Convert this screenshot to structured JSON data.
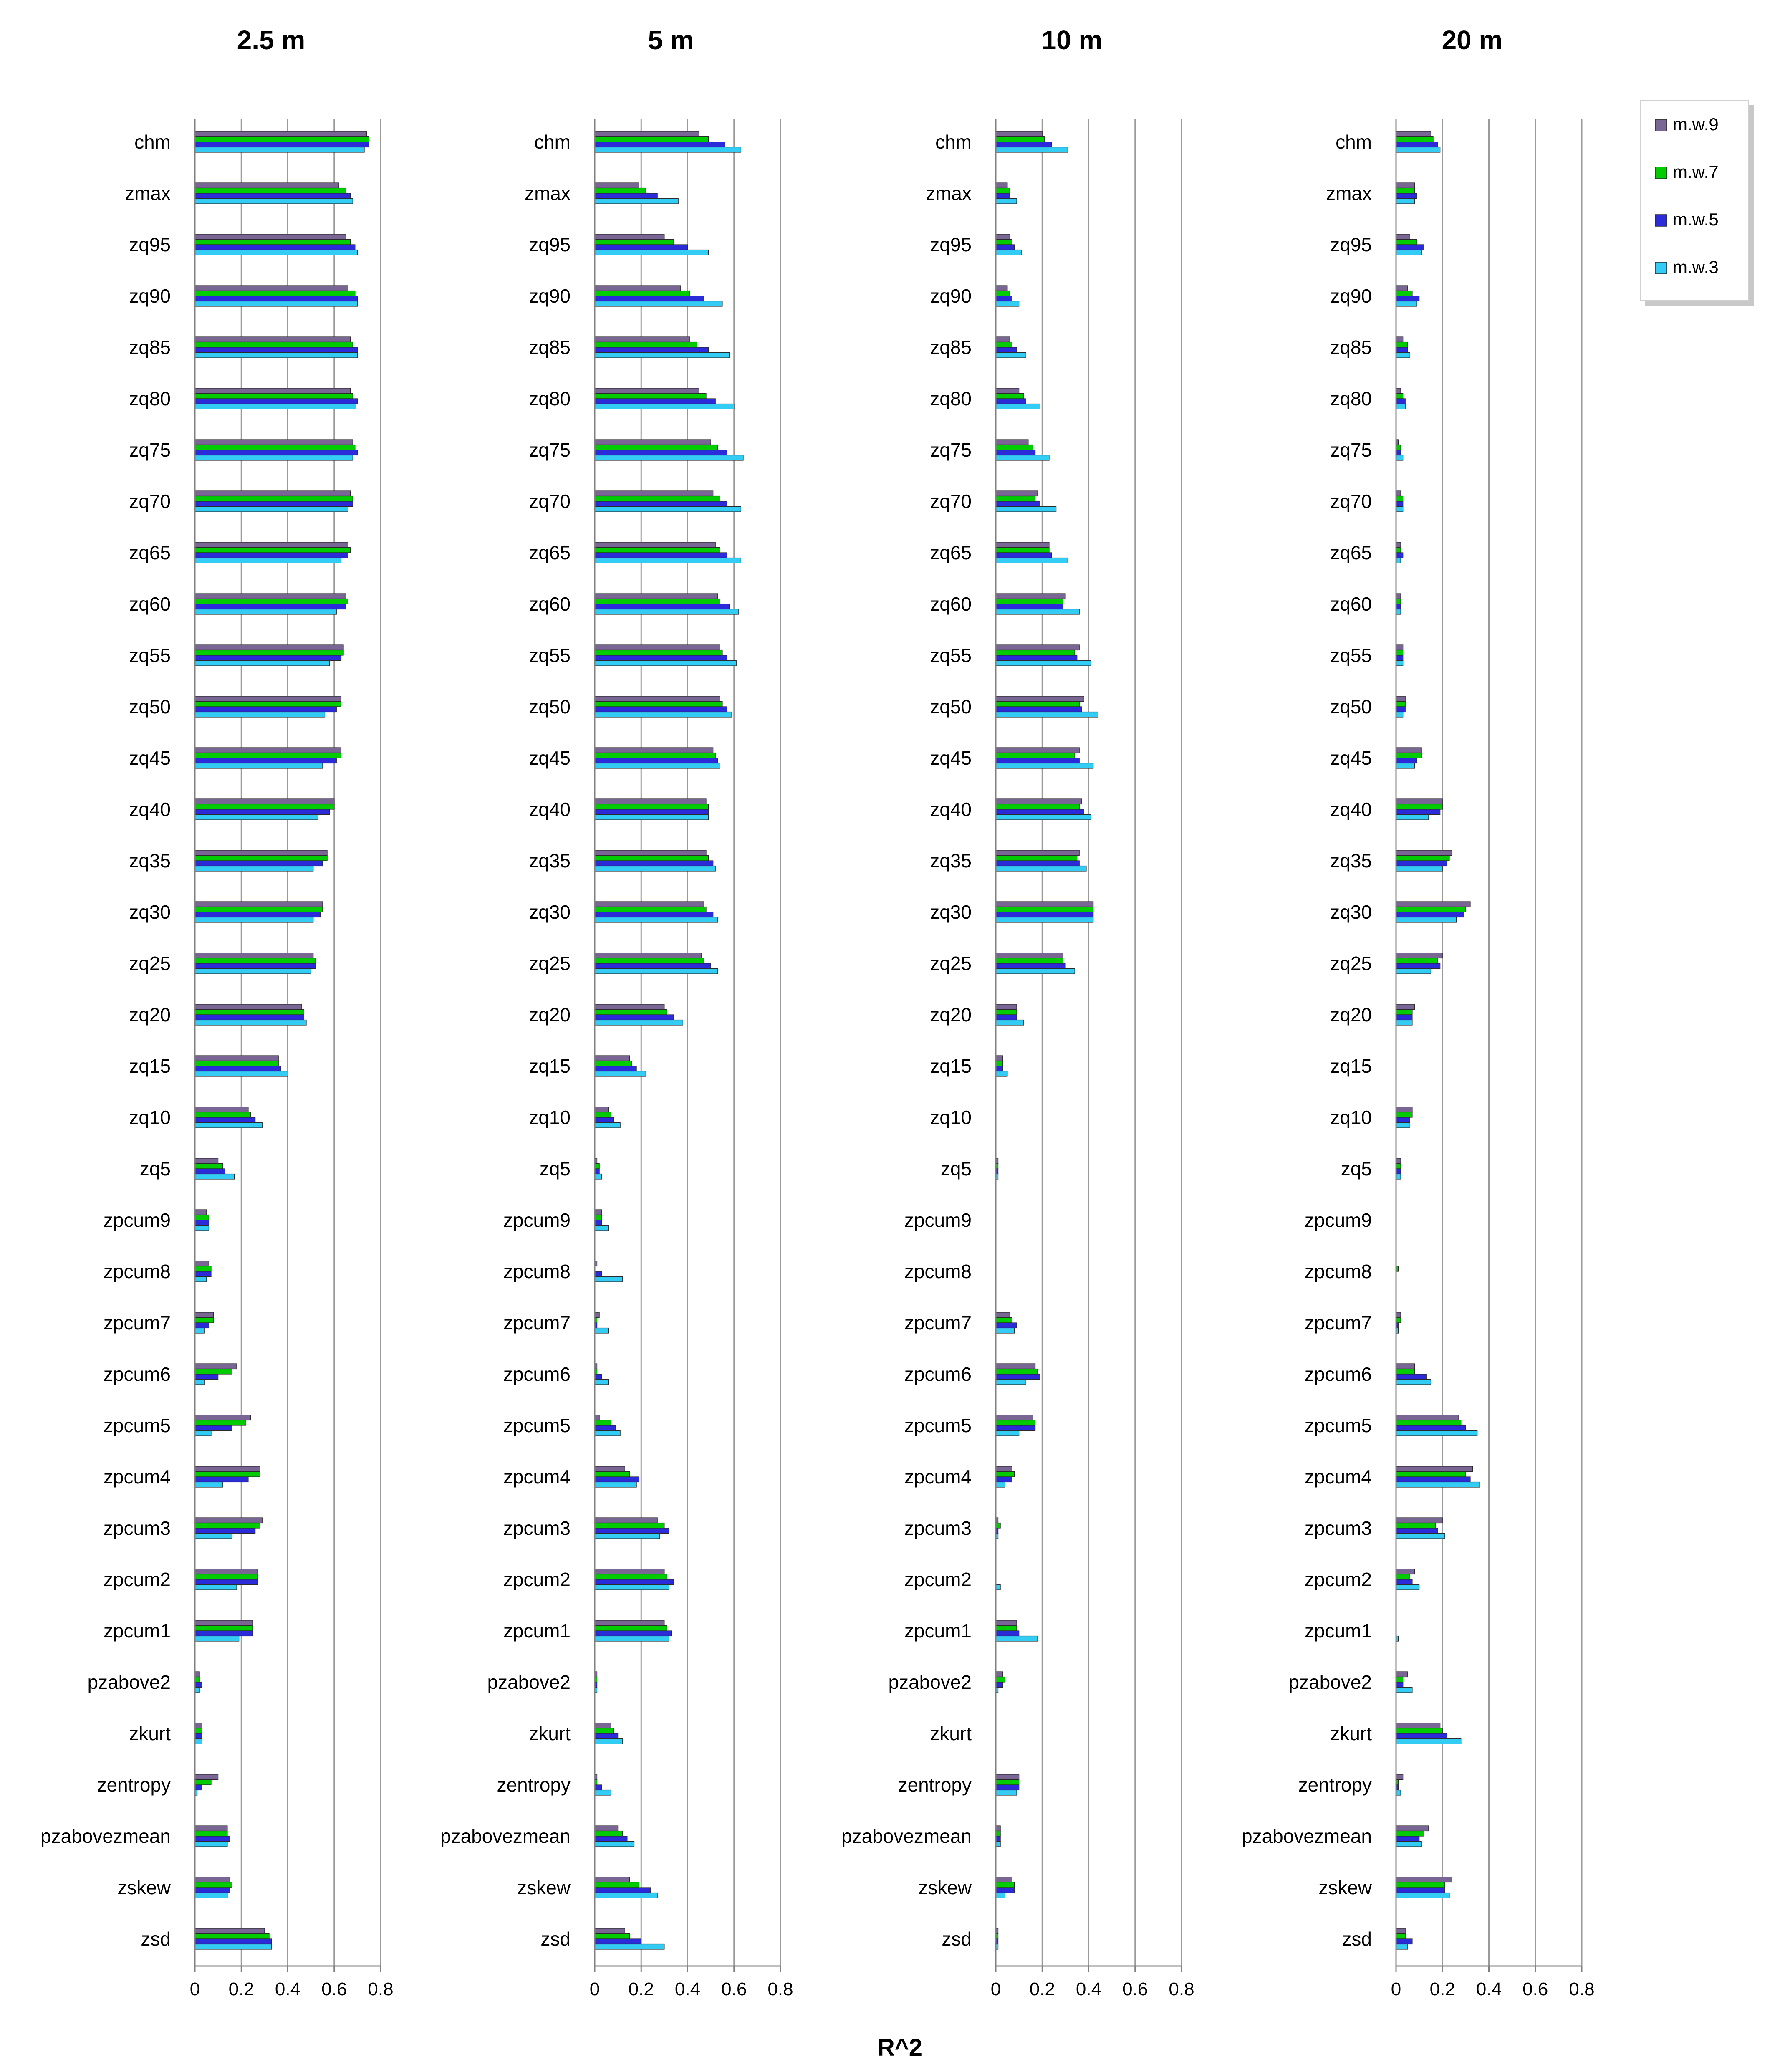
{
  "colors": {
    "m.w.9": "#7a6694",
    "m.w.7": "#00cc00",
    "m.w.5": "#2b2bd9",
    "m.w.3": "#33ccf5",
    "gridline": "#9a9a9a",
    "axis": "#808080",
    "text": "#000000",
    "bar_border": "#2a2a2a"
  },
  "shared_xlabel": "R^2",
  "chart_data": [
    {
      "type": "bar",
      "orientation": "horizontal",
      "title": "2.5 m",
      "xlabel": "R^2",
      "xlim": [
        0,
        0.8
      ],
      "xticks": [
        0,
        0.2,
        0.4,
        0.6,
        0.8
      ],
      "xtick_labels": [
        "0",
        "0.2",
        "0.4",
        "0.6",
        "0.8"
      ],
      "grid": true,
      "categories": [
        "chm",
        "zmax",
        "zq95",
        "zq90",
        "zq85",
        "zq80",
        "zq75",
        "zq70",
        "zq65",
        "zq60",
        "zq55",
        "zq50",
        "zq45",
        "zq40",
        "zq35",
        "zq30",
        "zq25",
        "zq20",
        "zq15",
        "zq10",
        "zq5",
        "zpcum9",
        "zpcum8",
        "zpcum7",
        "zpcum6",
        "zpcum5",
        "zpcum4",
        "zpcum3",
        "zpcum2",
        "zpcum1",
        "pzabove2",
        "zkurt",
        "zentropy",
        "pzabovezmean",
        "zskew",
        "zsd"
      ],
      "series": [
        {
          "name": "m.w.9",
          "values": [
            0.74,
            0.62,
            0.65,
            0.66,
            0.67,
            0.67,
            0.68,
            0.67,
            0.66,
            0.65,
            0.64,
            0.63,
            0.63,
            0.6,
            0.57,
            0.55,
            0.51,
            0.46,
            0.36,
            0.23,
            0.1,
            0.05,
            0.06,
            0.08,
            0.18,
            0.24,
            0.28,
            0.29,
            0.27,
            0.25,
            0.02,
            0.03,
            0.1,
            0.14,
            0.15,
            0.3
          ]
        },
        {
          "name": "m.w.7",
          "values": [
            0.75,
            0.65,
            0.67,
            0.69,
            0.68,
            0.68,
            0.69,
            0.68,
            0.67,
            0.66,
            0.64,
            0.63,
            0.63,
            0.6,
            0.57,
            0.55,
            0.52,
            0.47,
            0.36,
            0.24,
            0.12,
            0.06,
            0.07,
            0.08,
            0.16,
            0.22,
            0.28,
            0.28,
            0.27,
            0.25,
            0.02,
            0.03,
            0.07,
            0.14,
            0.16,
            0.32
          ]
        },
        {
          "name": "m.w.5",
          "values": [
            0.75,
            0.67,
            0.69,
            0.7,
            0.7,
            0.7,
            0.7,
            0.68,
            0.66,
            0.65,
            0.63,
            0.61,
            0.61,
            0.58,
            0.55,
            0.54,
            0.52,
            0.47,
            0.37,
            0.26,
            0.13,
            0.06,
            0.07,
            0.06,
            0.1,
            0.16,
            0.23,
            0.26,
            0.27,
            0.25,
            0.03,
            0.03,
            0.03,
            0.15,
            0.15,
            0.33
          ]
        },
        {
          "name": "m.w.3",
          "values": [
            0.73,
            0.68,
            0.7,
            0.7,
            0.7,
            0.69,
            0.68,
            0.66,
            0.63,
            0.61,
            0.58,
            0.56,
            0.55,
            0.53,
            0.51,
            0.51,
            0.5,
            0.48,
            0.4,
            0.29,
            0.17,
            0.06,
            0.05,
            0.04,
            0.04,
            0.07,
            0.12,
            0.16,
            0.18,
            0.19,
            0.02,
            0.03,
            0.01,
            0.14,
            0.14,
            0.33
          ]
        }
      ]
    },
    {
      "type": "bar",
      "orientation": "horizontal",
      "title": "5 m",
      "xlabel": "R^2",
      "xlim": [
        0,
        0.8
      ],
      "xticks": [
        0,
        0.2,
        0.4,
        0.6,
        0.8
      ],
      "xtick_labels": [
        "0",
        "0.2",
        "0.4",
        "0.6",
        "0.8"
      ],
      "grid": true,
      "categories": [
        "chm",
        "zmax",
        "zq95",
        "zq90",
        "zq85",
        "zq80",
        "zq75",
        "zq70",
        "zq65",
        "zq60",
        "zq55",
        "zq50",
        "zq45",
        "zq40",
        "zq35",
        "zq30",
        "zq25",
        "zq20",
        "zq15",
        "zq10",
        "zq5",
        "zpcum9",
        "zpcum8",
        "zpcum7",
        "zpcum6",
        "zpcum5",
        "zpcum4",
        "zpcum3",
        "zpcum2",
        "zpcum1",
        "pzabove2",
        "zkurt",
        "zentropy",
        "pzabovezmean",
        "zskew",
        "zsd"
      ],
      "series": [
        {
          "name": "m.w.9",
          "values": [
            0.45,
            0.19,
            0.3,
            0.37,
            0.41,
            0.45,
            0.5,
            0.51,
            0.52,
            0.53,
            0.54,
            0.54,
            0.51,
            0.48,
            0.48,
            0.47,
            0.46,
            0.3,
            0.15,
            0.06,
            0.01,
            0.03,
            0.01,
            0.02,
            0.01,
            0.02,
            0.13,
            0.27,
            0.3,
            0.3,
            0.01,
            0.07,
            0.01,
            0.1,
            0.15,
            0.13
          ]
        },
        {
          "name": "m.w.7",
          "values": [
            0.49,
            0.22,
            0.34,
            0.41,
            0.44,
            0.48,
            0.53,
            0.54,
            0.54,
            0.54,
            0.55,
            0.55,
            0.52,
            0.49,
            0.49,
            0.48,
            0.47,
            0.31,
            0.16,
            0.07,
            0.02,
            0.03,
            0.0,
            0.01,
            0.01,
            0.07,
            0.15,
            0.3,
            0.31,
            0.31,
            0.01,
            0.08,
            0.01,
            0.12,
            0.19,
            0.15
          ]
        },
        {
          "name": "m.w.5",
          "values": [
            0.56,
            0.27,
            0.4,
            0.47,
            0.49,
            0.52,
            0.57,
            0.57,
            0.57,
            0.58,
            0.57,
            0.57,
            0.53,
            0.49,
            0.51,
            0.51,
            0.5,
            0.34,
            0.18,
            0.08,
            0.02,
            0.03,
            0.03,
            0.01,
            0.03,
            0.09,
            0.19,
            0.32,
            0.34,
            0.33,
            0.01,
            0.1,
            0.03,
            0.14,
            0.24,
            0.2
          ]
        },
        {
          "name": "m.w.3",
          "values": [
            0.63,
            0.36,
            0.49,
            0.55,
            0.58,
            0.6,
            0.64,
            0.63,
            0.63,
            0.62,
            0.61,
            0.59,
            0.54,
            0.49,
            0.52,
            0.53,
            0.53,
            0.38,
            0.22,
            0.11,
            0.03,
            0.06,
            0.12,
            0.06,
            0.06,
            0.11,
            0.18,
            0.28,
            0.32,
            0.32,
            0.01,
            0.12,
            0.07,
            0.17,
            0.27,
            0.3
          ]
        }
      ]
    },
    {
      "type": "bar",
      "orientation": "horizontal",
      "title": "10 m",
      "xlabel": "R^2",
      "xlim": [
        0,
        0.8
      ],
      "xticks": [
        0,
        0.2,
        0.4,
        0.6,
        0.8
      ],
      "xtick_labels": [
        "0",
        "0.2",
        "0.4",
        "0.6",
        "0.8"
      ],
      "grid": true,
      "categories": [
        "chm",
        "zmax",
        "zq95",
        "zq90",
        "zq85",
        "zq80",
        "zq75",
        "zq70",
        "zq65",
        "zq60",
        "zq55",
        "zq50",
        "zq45",
        "zq40",
        "zq35",
        "zq30",
        "zq25",
        "zq20",
        "zq15",
        "zq10",
        "zq5",
        "zpcum9",
        "zpcum8",
        "zpcum7",
        "zpcum6",
        "zpcum5",
        "zpcum4",
        "zpcum3",
        "zpcum2",
        "zpcum1",
        "pzabove2",
        "zkurt",
        "zentropy",
        "pzabovezmean",
        "zskew",
        "zsd"
      ],
      "series": [
        {
          "name": "m.w.9",
          "values": [
            0.2,
            0.05,
            0.06,
            0.05,
            0.06,
            0.1,
            0.14,
            0.18,
            0.23,
            0.3,
            0.36,
            0.38,
            0.36,
            0.37,
            0.36,
            0.42,
            0.29,
            0.09,
            0.03,
            0.0,
            0.01,
            0.0,
            0.0,
            0.06,
            0.17,
            0.16,
            0.07,
            0.01,
            0.0,
            0.09,
            0.03,
            0.0,
            0.1,
            0.02,
            0.07,
            0.01
          ]
        },
        {
          "name": "m.w.7",
          "values": [
            0.21,
            0.06,
            0.07,
            0.06,
            0.07,
            0.12,
            0.16,
            0.17,
            0.23,
            0.29,
            0.34,
            0.36,
            0.34,
            0.36,
            0.35,
            0.42,
            0.29,
            0.09,
            0.03,
            0.0,
            0.01,
            0.0,
            0.0,
            0.07,
            0.18,
            0.17,
            0.08,
            0.02,
            0.0,
            0.09,
            0.04,
            0.0,
            0.1,
            0.02,
            0.08,
            0.01
          ]
        },
        {
          "name": "m.w.5",
          "values": [
            0.24,
            0.06,
            0.08,
            0.07,
            0.09,
            0.13,
            0.17,
            0.19,
            0.24,
            0.29,
            0.35,
            0.37,
            0.36,
            0.38,
            0.36,
            0.42,
            0.3,
            0.09,
            0.03,
            0.0,
            0.01,
            0.0,
            0.0,
            0.09,
            0.19,
            0.17,
            0.07,
            0.01,
            0.0,
            0.1,
            0.03,
            0.0,
            0.1,
            0.02,
            0.08,
            0.01
          ]
        },
        {
          "name": "m.w.3",
          "values": [
            0.31,
            0.09,
            0.11,
            0.1,
            0.13,
            0.19,
            0.23,
            0.26,
            0.31,
            0.36,
            0.41,
            0.44,
            0.42,
            0.41,
            0.39,
            0.42,
            0.34,
            0.12,
            0.05,
            0.0,
            0.01,
            0.0,
            0.0,
            0.08,
            0.13,
            0.1,
            0.04,
            0.01,
            0.02,
            0.18,
            0.01,
            0.0,
            0.09,
            0.02,
            0.04,
            0.01
          ]
        }
      ]
    },
    {
      "type": "bar",
      "orientation": "horizontal",
      "title": "20 m",
      "xlabel": "R^2",
      "xlim": [
        0,
        0.8
      ],
      "xticks": [
        0,
        0.2,
        0.4,
        0.6,
        0.8
      ],
      "xtick_labels": [
        "0",
        "0.2",
        "0.4",
        "0.6",
        "0.8"
      ],
      "grid": true,
      "legend": {
        "position": "top-right",
        "entries": [
          "m.w.9",
          "m.w.7",
          "m.w.5",
          "m.w.3"
        ]
      },
      "categories": [
        "chm",
        "zmax",
        "zq95",
        "zq90",
        "zq85",
        "zq80",
        "zq75",
        "zq70",
        "zq65",
        "zq60",
        "zq55",
        "zq50",
        "zq45",
        "zq40",
        "zq35",
        "zq30",
        "zq25",
        "zq20",
        "zq15",
        "zq10",
        "zq5",
        "zpcum9",
        "zpcum8",
        "zpcum7",
        "zpcum6",
        "zpcum5",
        "zpcum4",
        "zpcum3",
        "zpcum2",
        "zpcum1",
        "pzabove2",
        "zkurt",
        "zentropy",
        "pzabovezmean",
        "zskew",
        "zsd"
      ],
      "series": [
        {
          "name": "m.w.9",
          "values": [
            0.15,
            0.08,
            0.06,
            0.05,
            0.03,
            0.02,
            0.01,
            0.02,
            0.02,
            0.02,
            0.03,
            0.04,
            0.11,
            0.2,
            0.24,
            0.32,
            0.2,
            0.08,
            0.0,
            0.07,
            0.02,
            0.0,
            0.0,
            0.02,
            0.08,
            0.27,
            0.33,
            0.2,
            0.08,
            0.0,
            0.05,
            0.19,
            0.03,
            0.14,
            0.24,
            0.04
          ]
        },
        {
          "name": "m.w.7",
          "values": [
            0.16,
            0.08,
            0.09,
            0.07,
            0.05,
            0.03,
            0.02,
            0.03,
            0.02,
            0.02,
            0.03,
            0.04,
            0.11,
            0.2,
            0.23,
            0.3,
            0.18,
            0.07,
            0.0,
            0.07,
            0.02,
            0.0,
            0.01,
            0.02,
            0.08,
            0.28,
            0.3,
            0.17,
            0.06,
            0.0,
            0.03,
            0.2,
            0.01,
            0.12,
            0.21,
            0.04
          ]
        },
        {
          "name": "m.w.5",
          "values": [
            0.18,
            0.09,
            0.12,
            0.1,
            0.05,
            0.04,
            0.02,
            0.03,
            0.03,
            0.02,
            0.03,
            0.04,
            0.09,
            0.19,
            0.22,
            0.29,
            0.19,
            0.07,
            0.0,
            0.06,
            0.02,
            0.0,
            0.0,
            0.01,
            0.13,
            0.3,
            0.32,
            0.18,
            0.07,
            0.0,
            0.03,
            0.22,
            0.01,
            0.1,
            0.21,
            0.07
          ]
        },
        {
          "name": "m.w.3",
          "values": [
            0.19,
            0.08,
            0.11,
            0.09,
            0.06,
            0.04,
            0.03,
            0.03,
            0.02,
            0.02,
            0.03,
            0.03,
            0.08,
            0.14,
            0.2,
            0.26,
            0.15,
            0.07,
            0.0,
            0.06,
            0.02,
            0.0,
            0.0,
            0.01,
            0.15,
            0.35,
            0.36,
            0.21,
            0.1,
            0.01,
            0.07,
            0.28,
            0.02,
            0.11,
            0.23,
            0.05
          ]
        }
      ]
    }
  ]
}
